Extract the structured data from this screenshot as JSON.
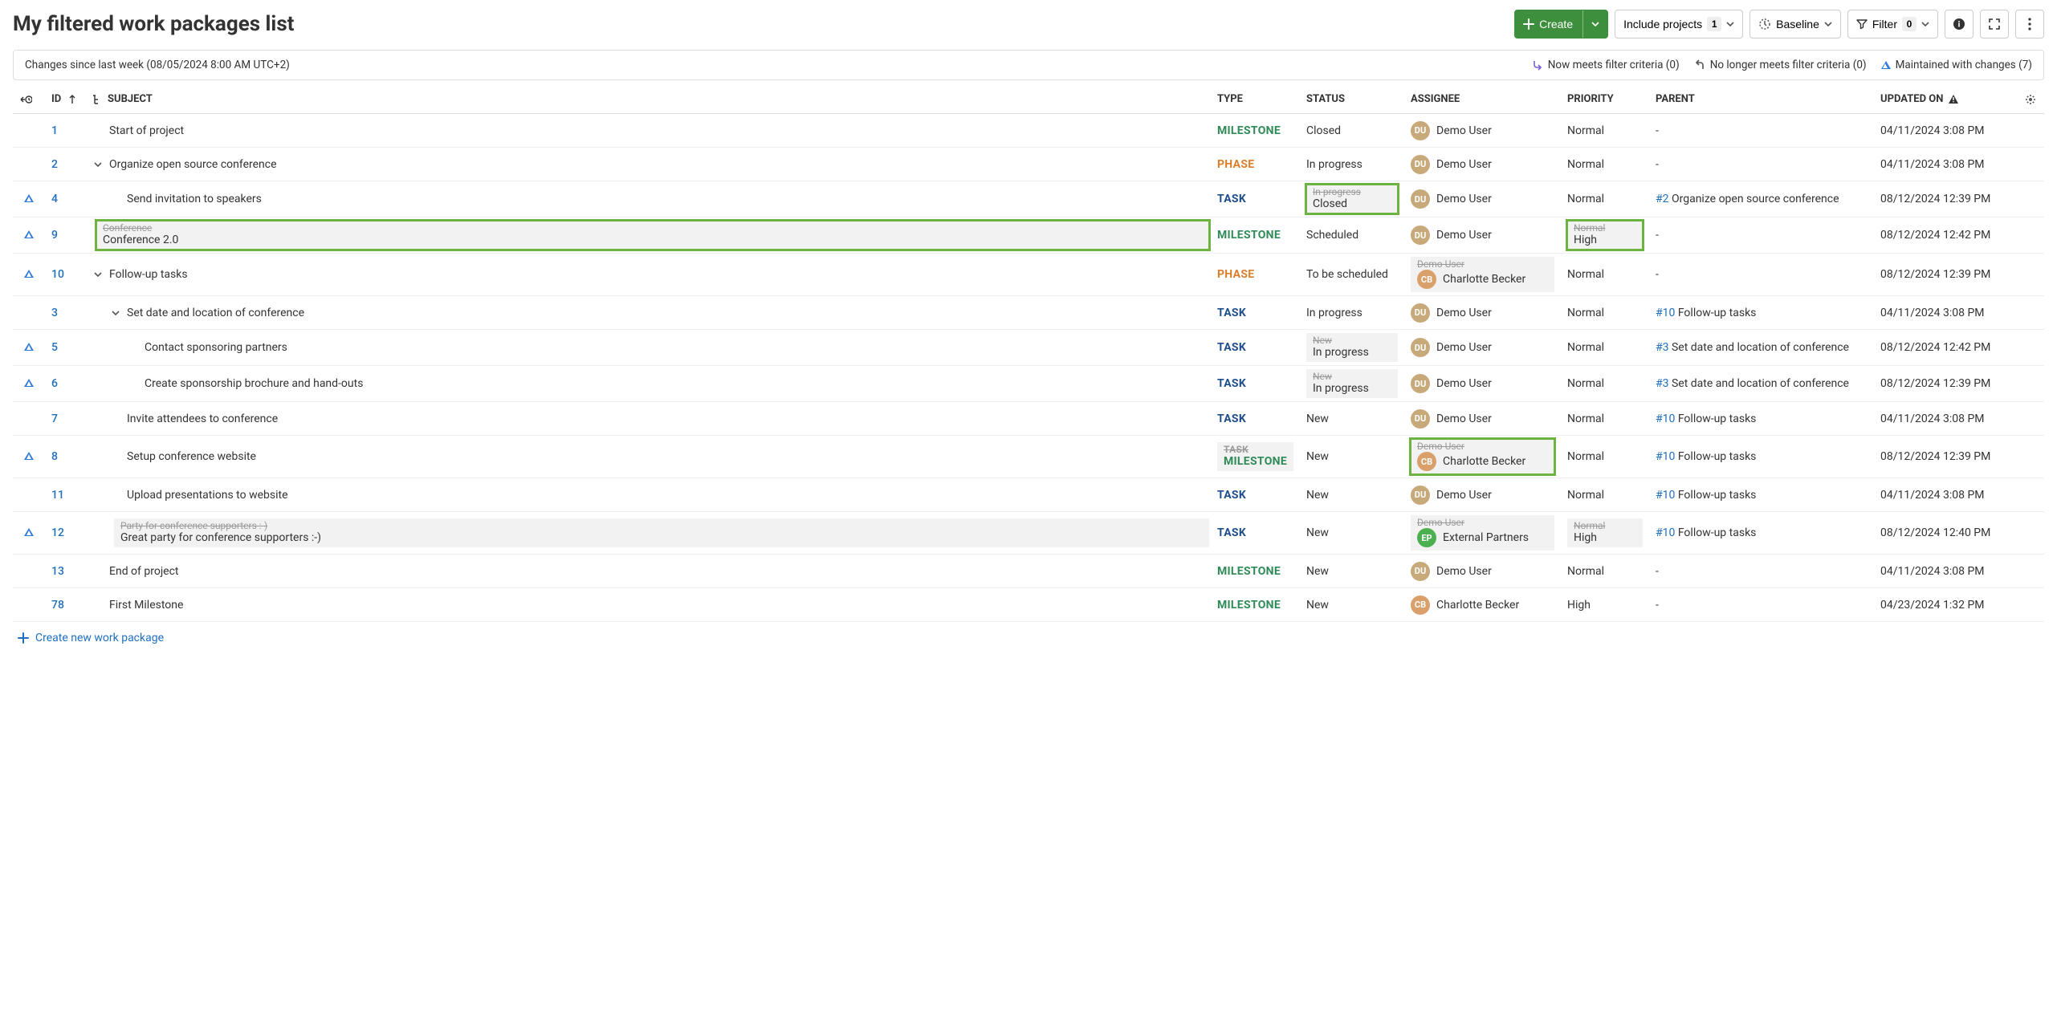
{
  "page": {
    "title": "My filtered work packages list"
  },
  "toolbar": {
    "create": "Create",
    "include_projects": "Include projects",
    "include_projects_count": "1",
    "baseline": "Baseline",
    "filter": "Filter",
    "filter_count": "0"
  },
  "legend": {
    "since": "Changes since last week (08/05/2024 8:00 AM UTC+2)",
    "now_meets": "Now meets filter criteria (0)",
    "no_longer": "No longer meets filter criteria (0)",
    "maintained": "Maintained with changes (7)"
  },
  "columns": {
    "id": "ID",
    "subject": "SUBJECT",
    "type": "TYPE",
    "status": "STATUS",
    "assignee": "ASSIGNEE",
    "priority": "PRIORITY",
    "parent": "PARENT",
    "updated": "UPDATED ON"
  },
  "create_link": "Create new work package",
  "rows": [
    {
      "mark": "",
      "id": "1",
      "indent": 0,
      "expander": "",
      "subject": "Start of project",
      "type": "MILESTONE",
      "status": "Closed",
      "assignee": "Demo User",
      "avatar": "du",
      "priority": "Normal",
      "parent_id": "",
      "parent_txt": "-",
      "updated": "04/11/2024 3:08 PM"
    },
    {
      "mark": "",
      "id": "2",
      "indent": 0,
      "expander": "v",
      "subject": "Organize open source conference",
      "type": "PHASE",
      "status": "In progress",
      "assignee": "Demo User",
      "avatar": "du",
      "priority": "Normal",
      "parent_id": "",
      "parent_txt": "-",
      "updated": "04/11/2024 3:08 PM"
    },
    {
      "mark": "tri",
      "id": "4",
      "indent": 1,
      "expander": "",
      "subject": "Send invitation to speakers",
      "type": "TASK",
      "status_change": {
        "old": "In progress",
        "new": "Closed",
        "box": "green"
      },
      "assignee": "Demo User",
      "avatar": "du",
      "priority": "Normal",
      "parent_id": "#2",
      "parent_txt": "Organize open source conference",
      "updated": "08/12/2024 12:39 PM"
    },
    {
      "mark": "tri",
      "id": "9",
      "indent": 0,
      "expander": "",
      "subject_change": {
        "old": "Conference",
        "new": "Conference 2.0",
        "box": "green"
      },
      "type": "MILESTONE",
      "status": "Scheduled",
      "assignee": "Demo User",
      "avatar": "du",
      "priority_change": {
        "old": "Normal",
        "new": "High",
        "box": "green"
      },
      "parent_id": "",
      "parent_txt": "-",
      "updated": "08/12/2024 12:42 PM"
    },
    {
      "mark": "tri",
      "id": "10",
      "indent": 0,
      "expander": "v",
      "subject": "Follow-up tasks",
      "type": "PHASE",
      "status": "To be scheduled",
      "assignee_change": {
        "old": "Demo User",
        "new": "Charlotte Becker",
        "avatar": "cb"
      },
      "priority": "Normal",
      "parent_id": "",
      "parent_txt": "-",
      "updated": "08/12/2024 12:39 PM"
    },
    {
      "mark": "",
      "id": "3",
      "indent": 1,
      "expander": "v",
      "subject": "Set date and location of conference",
      "type": "TASK",
      "status": "In progress",
      "assignee": "Demo User",
      "avatar": "du",
      "priority": "Normal",
      "parent_id": "#10",
      "parent_txt": "Follow-up tasks",
      "updated": "04/11/2024 3:08 PM"
    },
    {
      "mark": "tri",
      "id": "5",
      "indent": 2,
      "expander": "",
      "subject": "Contact sponsoring partners",
      "type": "TASK",
      "status_change": {
        "old": "New",
        "new": "In progress"
      },
      "assignee": "Demo User",
      "avatar": "du",
      "priority": "Normal",
      "parent_id": "#3",
      "parent_txt": "Set date and location of conference",
      "updated": "08/12/2024 12:42 PM"
    },
    {
      "mark": "tri",
      "id": "6",
      "indent": 2,
      "expander": "",
      "subject": "Create sponsorship brochure and hand-outs",
      "type": "TASK",
      "status_change": {
        "old": "New",
        "new": "In progress"
      },
      "assignee": "Demo User",
      "avatar": "du",
      "priority": "Normal",
      "parent_id": "#3",
      "parent_txt": "Set date and location of conference",
      "updated": "08/12/2024 12:39 PM"
    },
    {
      "mark": "",
      "id": "7",
      "indent": 1,
      "expander": "",
      "subject": "Invite attendees to conference",
      "type": "TASK",
      "status": "New",
      "assignee": "Demo User",
      "avatar": "du",
      "priority": "Normal",
      "parent_id": "#10",
      "parent_txt": "Follow-up tasks",
      "updated": "04/11/2024 3:08 PM"
    },
    {
      "mark": "tri",
      "id": "8",
      "indent": 1,
      "expander": "",
      "subject": "Setup conference website",
      "type_change": {
        "old": "TASK",
        "new": "MILESTONE"
      },
      "status": "New",
      "assignee_change": {
        "old": "Demo User",
        "new": "Charlotte Becker",
        "avatar": "cb",
        "box": "green"
      },
      "priority": "Normal",
      "parent_id": "#10",
      "parent_txt": "Follow-up tasks",
      "updated": "08/12/2024 12:39 PM"
    },
    {
      "mark": "",
      "id": "11",
      "indent": 1,
      "expander": "",
      "subject": "Upload presentations to website",
      "type": "TASK",
      "status": "New",
      "assignee": "Demo User",
      "avatar": "du",
      "priority": "Normal",
      "parent_id": "#10",
      "parent_txt": "Follow-up tasks",
      "updated": "04/11/2024 3:08 PM"
    },
    {
      "mark": "tri",
      "id": "12",
      "indent": 1,
      "expander": "",
      "subject_change": {
        "old": "Party for conference supporters :-)",
        "new": "Great party for conference supporters :-)"
      },
      "type": "TASK",
      "status": "New",
      "assignee_change": {
        "old": "Demo User",
        "new": "External Partners",
        "avatar": "ep"
      },
      "priority_change": {
        "old": "Normal",
        "new": "High"
      },
      "parent_id": "#10",
      "parent_txt": "Follow-up tasks",
      "updated": "08/12/2024 12:40 PM"
    },
    {
      "mark": "",
      "id": "13",
      "indent": 0,
      "expander": "",
      "subject": "End of project",
      "type": "MILESTONE",
      "status": "New",
      "assignee": "Demo User",
      "avatar": "du",
      "priority": "Normal",
      "parent_id": "",
      "parent_txt": "-",
      "updated": "04/11/2024 3:08 PM"
    },
    {
      "mark": "",
      "id": "78",
      "indent": 0,
      "expander": "",
      "subject": "First Milestone",
      "type": "MILESTONE",
      "status": "New",
      "assignee": "Charlotte Becker",
      "avatar": "cb",
      "priority": "High",
      "parent_id": "",
      "parent_txt": "-",
      "updated": "04/23/2024 1:32 PM"
    }
  ]
}
